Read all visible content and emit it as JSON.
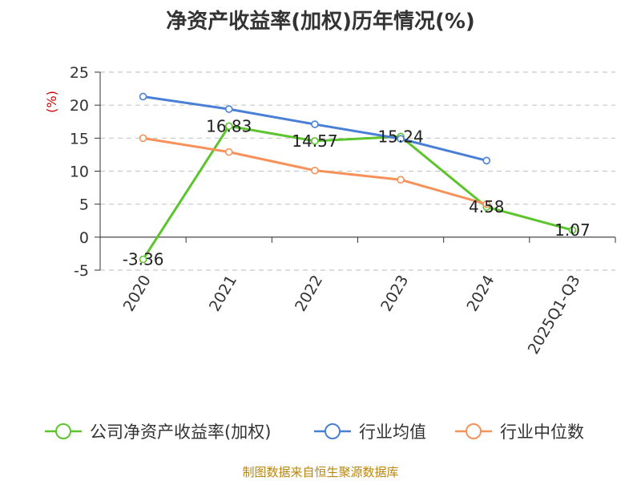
{
  "chart_data": {
    "type": "line",
    "title": "净资产收益率(加权)历年情况(%)",
    "ylabel": "(%)",
    "xlabel": "",
    "ylim": [
      -5,
      25
    ],
    "yticks": [
      -5,
      0,
      5,
      10,
      15,
      20,
      25
    ],
    "grid": true,
    "legend_position": "bottom",
    "categories": [
      "2020",
      "2021",
      "2022",
      "2023",
      "2024",
      "2025Q1-Q3"
    ],
    "series": [
      {
        "name": "公司净资产收益率(加权)",
        "color": "#5cc42c",
        "values": [
          -3.36,
          16.83,
          14.57,
          15.24,
          4.58,
          1.07
        ],
        "labels": [
          "-3.36",
          "16.83",
          "14.57",
          "15.24",
          "4.58",
          "1.07"
        ],
        "show_labels": true
      },
      {
        "name": "行业均值",
        "color": "#4a7fd6",
        "values": [
          21.3,
          19.4,
          17.1,
          14.9,
          11.6,
          null
        ],
        "show_labels": false
      },
      {
        "name": "行业中位数",
        "color": "#f6915a",
        "values": [
          15.0,
          12.9,
          10.1,
          8.7,
          5.0,
          null
        ],
        "show_labels": false
      }
    ]
  },
  "footer": {
    "source": "制图数据来自恒生聚源数据库"
  }
}
